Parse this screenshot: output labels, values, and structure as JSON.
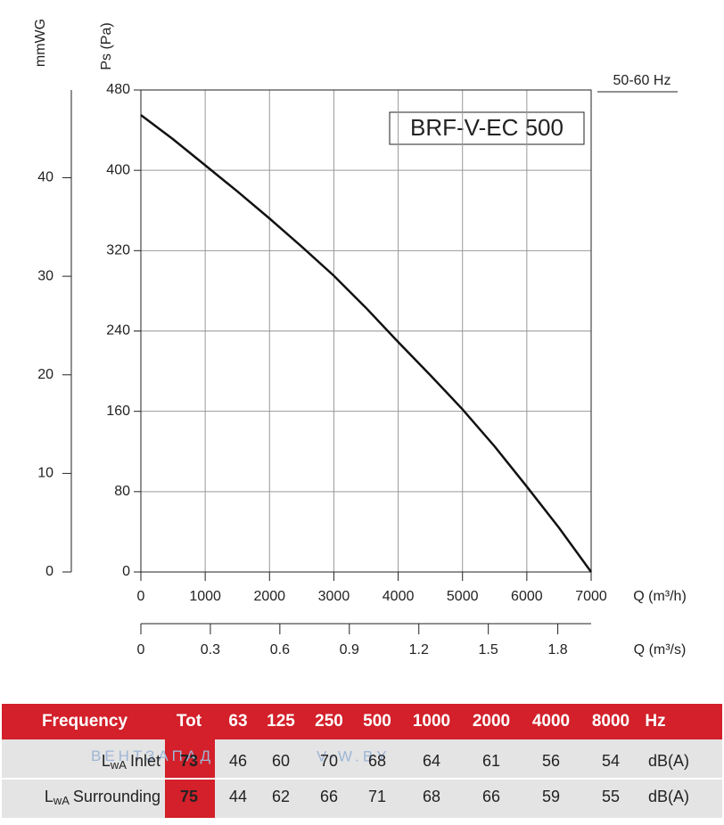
{
  "chart_data": {
    "type": "line",
    "y_label": "Ps (Pa)",
    "y2_label": "mmWG",
    "x_label": "Q (m³/h)",
    "x2_label": "Q (m³/s)",
    "frequency_label": "50-60 Hz",
    "model": "BRF-V-EC 500",
    "x": [
      0,
      500,
      1000,
      1500,
      2000,
      2500,
      3000,
      3500,
      4000,
      4500,
      5000,
      5500,
      6000,
      6500,
      7000
    ],
    "series": [
      {
        "name": "BRF-V-EC 500",
        "color": "#111111",
        "values": [
          455,
          431,
          405,
          379,
          352,
          324,
          295,
          263,
          229,
          196,
          162,
          125,
          85,
          44,
          0
        ]
      }
    ],
    "xlim": [
      0,
      7000
    ],
    "xticks": [
      0,
      1000,
      2000,
      3000,
      4000,
      5000,
      6000,
      7000
    ],
    "ylim": [
      0,
      480
    ],
    "yticks": [
      0,
      80,
      160,
      240,
      320,
      400,
      480
    ],
    "y2lim": [
      0,
      48.9
    ],
    "y2ticks": [
      0,
      10,
      20,
      30,
      40
    ],
    "x2lim": [
      0,
      1.944
    ],
    "x2ticks": [
      0,
      0.3,
      0.6,
      0.9,
      1.2,
      1.5,
      1.8
    ],
    "grid": true
  },
  "table": {
    "header": [
      "Frequency",
      "Tot",
      "63",
      "125",
      "250",
      "500",
      "1000",
      "2000",
      "4000",
      "8000",
      "Hz"
    ],
    "rows": [
      {
        "label": "L",
        "label_sub": "wA",
        "label_rest": "Inlet",
        "cells": [
          73,
          46,
          60,
          70,
          68,
          64,
          61,
          56,
          54
        ],
        "unit": "dB(A)"
      },
      {
        "label": "L",
        "label_sub": "wA",
        "label_rest": "Surrounding",
        "cells": [
          75,
          44,
          62,
          66,
          71,
          68,
          66,
          59,
          55
        ],
        "unit": "dB(A)"
      }
    ],
    "watermark": [
      "ВЕНТЗАПАД",
      "V-W.BY"
    ]
  }
}
